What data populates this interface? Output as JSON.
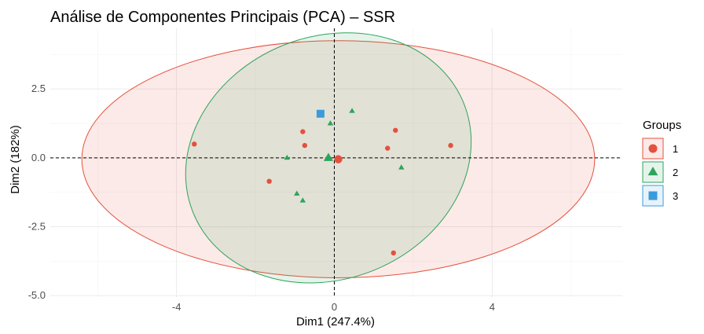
{
  "chart_data": {
    "type": "scatter",
    "title": "Análise de Componentes Principais (PCA) – SSR",
    "xlabel": "Dim1 (247.4%)",
    "ylabel": "Dim2 (182%)",
    "xlim": [
      -7.2,
      7.3
    ],
    "ylim": [
      -5.05,
      4.7
    ],
    "x_ticks": [
      -4,
      0,
      4
    ],
    "x_tick_labels": [
      "-4",
      "0",
      "4"
    ],
    "y_ticks": [
      -5.0,
      -2.5,
      0.0,
      2.5
    ],
    "y_tick_labels": [
      "-5.0",
      "-2.5",
      "0.0",
      "2.5"
    ],
    "grid": true,
    "reference_lines": {
      "x": 0,
      "y": 0,
      "style": "dashed"
    },
    "legend": {
      "title": "Groups",
      "placement": "right",
      "entries": [
        {
          "label": "1",
          "color": "#E4513E",
          "shape": "circle"
        },
        {
          "label": "2",
          "color": "#2DA45B",
          "shape": "triangle"
        },
        {
          "label": "3",
          "color": "#3A9BDC",
          "shape": "square"
        }
      ]
    },
    "series": [
      {
        "name": "1",
        "color": "#E4513E",
        "shape": "circle",
        "points": [
          [
            -3.55,
            0.5
          ],
          [
            -0.8,
            0.95
          ],
          [
            -0.75,
            0.45
          ],
          [
            1.55,
            1.0
          ],
          [
            1.35,
            0.35
          ],
          [
            2.95,
            0.45
          ],
          [
            -1.65,
            -0.85
          ],
          [
            1.5,
            -3.45
          ]
        ],
        "centroid": [
          0.1,
          -0.05
        ],
        "ellipse": {
          "cx": 0.1,
          "cy": -0.05,
          "rx": 6.5,
          "ry": 4.3,
          "angle": 0
        }
      },
      {
        "name": "2",
        "color": "#2DA45B",
        "shape": "triangle",
        "points": [
          [
            0.45,
            1.7
          ],
          [
            -0.1,
            1.25
          ],
          [
            -1.2,
            0.0
          ],
          [
            1.7,
            -0.35
          ],
          [
            -0.95,
            -1.3
          ],
          [
            -0.8,
            -1.55
          ]
        ],
        "centroid": [
          -0.15,
          0.0
        ],
        "ellipse": {
          "cx": -0.15,
          "cy": 0.0,
          "rx": 3.7,
          "ry": 4.4,
          "angle": -22
        }
      },
      {
        "name": "3",
        "color": "#3A9BDC",
        "shape": "square",
        "points": [
          [
            -0.35,
            1.6
          ]
        ]
      }
    ]
  }
}
